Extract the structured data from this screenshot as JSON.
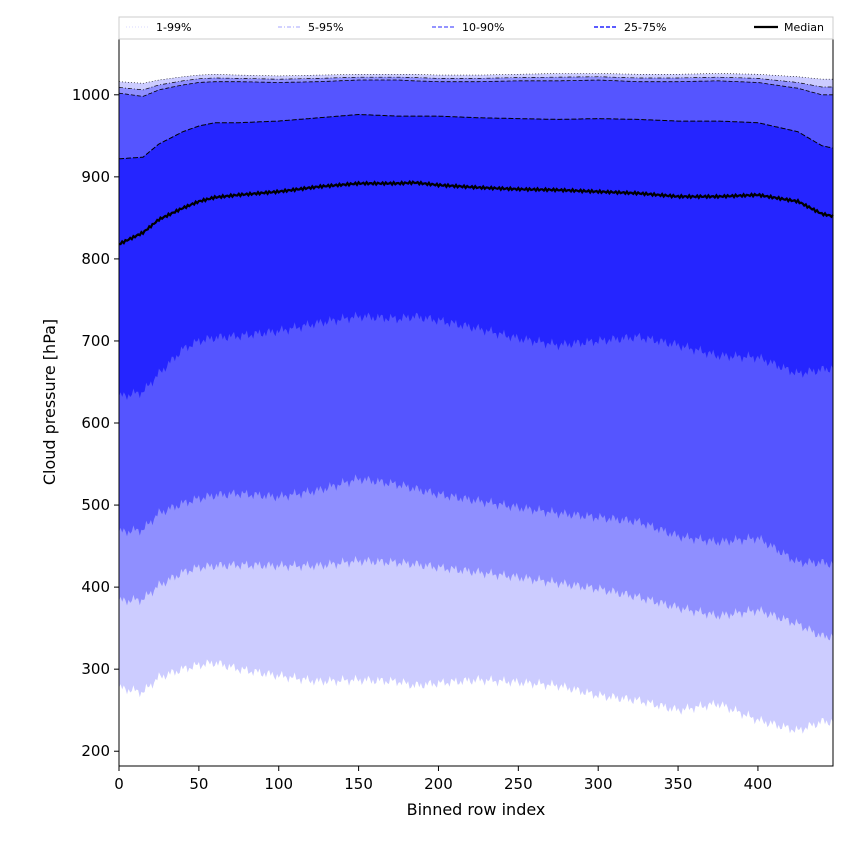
{
  "chart_data": {
    "type": "area",
    "xlabel": "Binned row index",
    "ylabel": "Cloud pressure [hPa]",
    "xlim": [
      0,
      447
    ],
    "ylim": [
      182,
      1068
    ],
    "xticks": [
      0,
      50,
      100,
      150,
      200,
      250,
      300,
      350,
      400
    ],
    "yticks": [
      200,
      300,
      400,
      500,
      600,
      700,
      800,
      900,
      1000
    ],
    "legend_position": "top",
    "x_knots": [
      0,
      15,
      25,
      40,
      50,
      60,
      75,
      100,
      125,
      150,
      175,
      185,
      200,
      225,
      250,
      275,
      300,
      325,
      350,
      375,
      400,
      425,
      440,
      447
    ],
    "series": [
      {
        "name": "1-99%",
        "style": "dotted",
        "color": "#ccccff",
        "lower": [
          277,
          272,
          290,
          300,
          305,
          308,
          300,
          292,
          285,
          287,
          285,
          280,
          283,
          287,
          284,
          280,
          268,
          262,
          250,
          258,
          238,
          225,
          236,
          236
        ],
        "upper": [
          1016,
          1014,
          1018,
          1022,
          1024,
          1025,
          1024,
          1023,
          1024,
          1025,
          1025,
          1025,
          1024,
          1024,
          1025,
          1026,
          1026,
          1025,
          1025,
          1026,
          1025,
          1022,
          1019,
          1019
        ]
      },
      {
        "name": "5-95%",
        "style": "dashdot",
        "color": "#8888ff",
        "lower": [
          383,
          385,
          402,
          418,
          424,
          426,
          427,
          426,
          426,
          432,
          430,
          428,
          424,
          418,
          412,
          405,
          398,
          388,
          375,
          365,
          372,
          355,
          340,
          340
        ]
      },
      {
        "name": "10-90%",
        "style": "dashed",
        "color": "#5555ff",
        "lower": [
          467,
          470,
          490,
          502,
          508,
          512,
          514,
          510,
          518,
          532,
          525,
          520,
          513,
          505,
          497,
          490,
          485,
          480,
          462,
          455,
          460,
          430,
          430,
          428
        ],
        "upper": [
          1002,
          998,
          1006,
          1012,
          1015,
          1016,
          1016,
          1015,
          1016,
          1018,
          1018,
          1017,
          1016,
          1016,
          1017,
          1017,
          1018,
          1016,
          1016,
          1017,
          1015,
          1008,
          1000,
          1000
        ]
      },
      {
        "name": "25-75%",
        "style": "dashed",
        "color": "#2525ff",
        "lower": [
          632,
          638,
          660,
          690,
          700,
          704,
          706,
          712,
          722,
          730,
          727,
          730,
          725,
          715,
          703,
          695,
          700,
          705,
          695,
          682,
          680,
          660,
          665,
          667
        ],
        "upper": [
          922,
          924,
          940,
          955,
          962,
          966,
          966,
          968,
          972,
          976,
          974,
          974,
          974,
          972,
          971,
          970,
          971,
          970,
          968,
          968,
          966,
          955,
          938,
          935
        ]
      },
      {
        "name": "Median",
        "style": "solid",
        "color": "#000000",
        "values": [
          818,
          832,
          848,
          862,
          870,
          875,
          878,
          882,
          888,
          892,
          892,
          893,
          890,
          887,
          885,
          884,
          882,
          880,
          876,
          876,
          878,
          870,
          855,
          852
        ]
      }
    ],
    "band_colors": [
      "#ccccff",
      "#8f8fff",
      "#5555ff",
      "#2525ff"
    ]
  }
}
